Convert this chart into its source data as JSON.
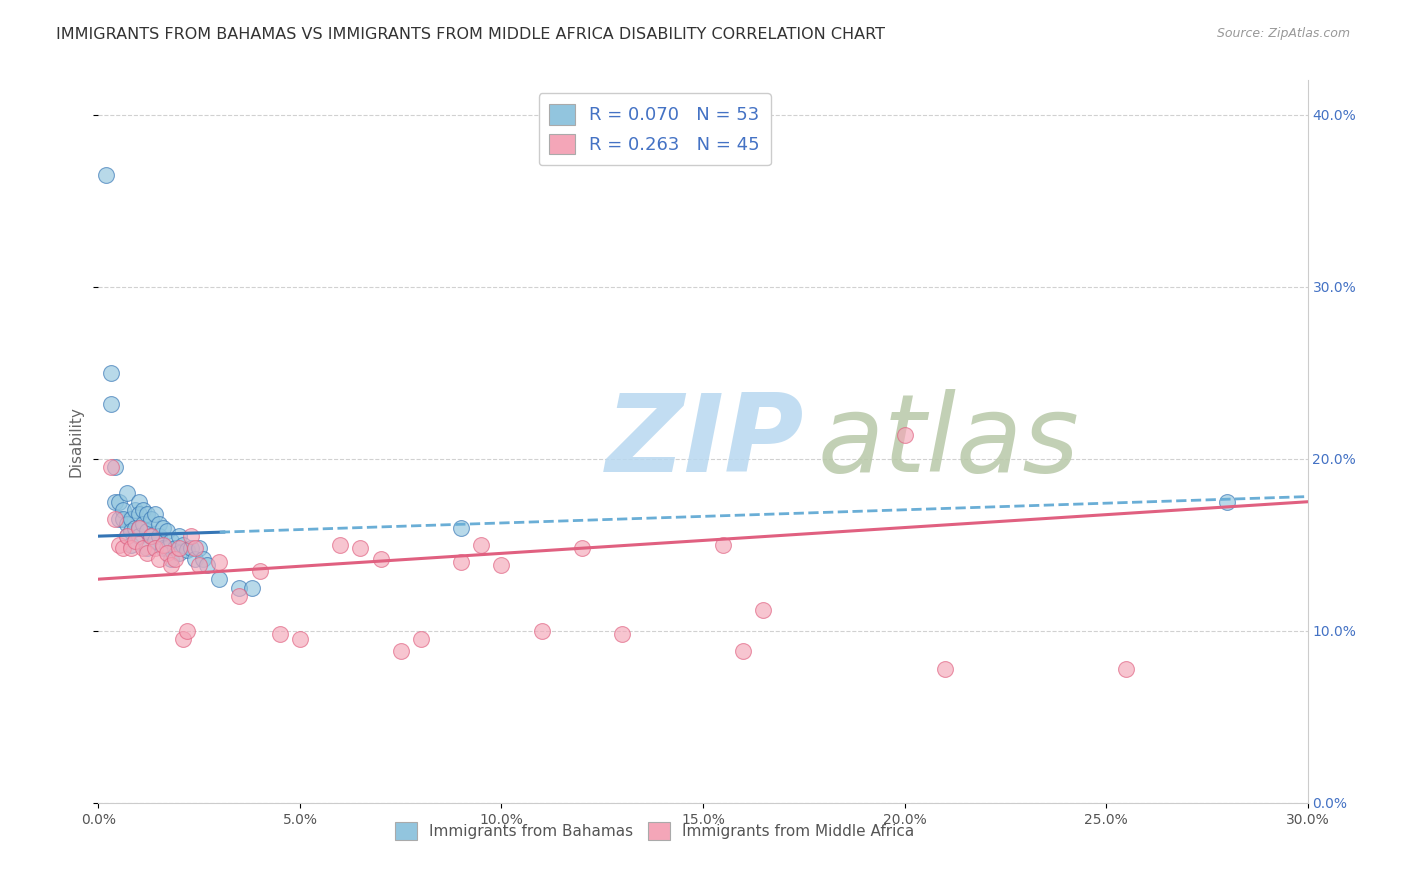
{
  "title": "IMMIGRANTS FROM BAHAMAS VS IMMIGRANTS FROM MIDDLE AFRICA DISABILITY CORRELATION CHART",
  "source": "Source: ZipAtlas.com",
  "ylabel": "Disability",
  "xlim": [
    0.0,
    0.3
  ],
  "ylim": [
    0.0,
    0.42
  ],
  "xticks": [
    0.0,
    0.05,
    0.1,
    0.15,
    0.2,
    0.25,
    0.3
  ],
  "yticks": [
    0.0,
    0.1,
    0.2,
    0.3,
    0.4
  ],
  "legend_labels": [
    "Immigrants from Bahamas",
    "Immigrants from Middle Africa"
  ],
  "blue_color": "#92c5de",
  "pink_color": "#f4a6b8",
  "blue_line_color": "#3575b5",
  "pink_line_color": "#e06080",
  "dashed_line_color": "#6aaed6",
  "watermark_zip": "ZIP",
  "watermark_atlas": "atlas",
  "watermark_color_zip": "#b8d9f0",
  "watermark_color_atlas": "#c8d8c8",
  "background_color": "#ffffff",
  "grid_color": "#cccccc",
  "bahamas_x": [
    0.002,
    0.003,
    0.003,
    0.004,
    0.004,
    0.005,
    0.005,
    0.006,
    0.006,
    0.007,
    0.007,
    0.007,
    0.008,
    0.008,
    0.008,
    0.009,
    0.009,
    0.01,
    0.01,
    0.01,
    0.01,
    0.011,
    0.011,
    0.012,
    0.012,
    0.012,
    0.013,
    0.013,
    0.014,
    0.014,
    0.015,
    0.015,
    0.016,
    0.016,
    0.017,
    0.017,
    0.018,
    0.018,
    0.019,
    0.02,
    0.02,
    0.021,
    0.022,
    0.023,
    0.024,
    0.025,
    0.026,
    0.027,
    0.03,
    0.035,
    0.038,
    0.09,
    0.28
  ],
  "bahamas_y": [
    0.365,
    0.25,
    0.232,
    0.195,
    0.175,
    0.175,
    0.165,
    0.17,
    0.165,
    0.18,
    0.162,
    0.155,
    0.165,
    0.158,
    0.15,
    0.17,
    0.16,
    0.175,
    0.168,
    0.16,
    0.155,
    0.17,
    0.162,
    0.168,
    0.158,
    0.148,
    0.165,
    0.155,
    0.168,
    0.152,
    0.162,
    0.155,
    0.16,
    0.148,
    0.158,
    0.148,
    0.152,
    0.142,
    0.148,
    0.155,
    0.145,
    0.15,
    0.147,
    0.148,
    0.142,
    0.148,
    0.142,
    0.138,
    0.13,
    0.125,
    0.125,
    0.16,
    0.175
  ],
  "midafrica_x": [
    0.003,
    0.004,
    0.005,
    0.006,
    0.007,
    0.008,
    0.009,
    0.01,
    0.011,
    0.012,
    0.013,
    0.014,
    0.015,
    0.016,
    0.017,
    0.018,
    0.019,
    0.02,
    0.021,
    0.022,
    0.023,
    0.024,
    0.025,
    0.03,
    0.035,
    0.04,
    0.045,
    0.05,
    0.06,
    0.065,
    0.07,
    0.075,
    0.08,
    0.09,
    0.095,
    0.1,
    0.11,
    0.12,
    0.13,
    0.155,
    0.16,
    0.165,
    0.2,
    0.21,
    0.255
  ],
  "midafrica_y": [
    0.195,
    0.165,
    0.15,
    0.148,
    0.155,
    0.148,
    0.152,
    0.16,
    0.148,
    0.145,
    0.155,
    0.148,
    0.142,
    0.15,
    0.145,
    0.138,
    0.142,
    0.148,
    0.095,
    0.1,
    0.155,
    0.148,
    0.138,
    0.14,
    0.12,
    0.135,
    0.098,
    0.095,
    0.15,
    0.148,
    0.142,
    0.088,
    0.095,
    0.14,
    0.15,
    0.138,
    0.1,
    0.148,
    0.098,
    0.15,
    0.088,
    0.112,
    0.214,
    0.078,
    0.078
  ]
}
